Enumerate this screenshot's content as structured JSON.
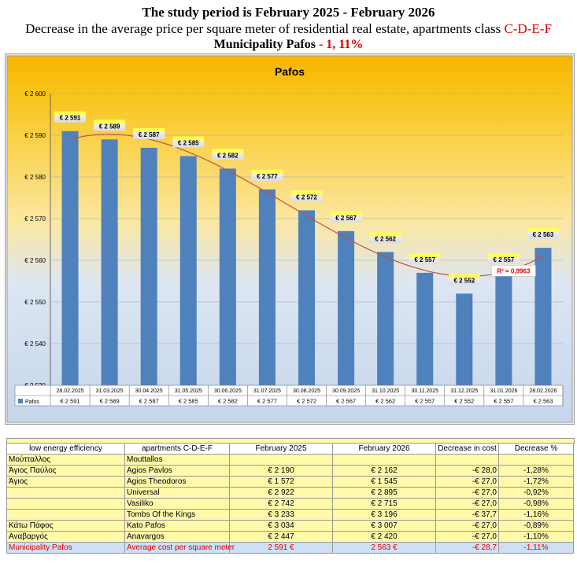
{
  "header": {
    "line1": "The study period is February 2025 - February 2026",
    "line2_text": "Decrease in the average price per square meter of residential real estate, apartments class ",
    "line2_class": "C-D-E-F",
    "line3_text": "Municipality Pafos",
    "line3_value": " - 1, 11%"
  },
  "chart_data": {
    "type": "bar",
    "title": "Pafos",
    "categories": [
      "28.02.2025",
      "31.03.2025",
      "30.04.2025",
      "31.05.2025",
      "30.06.2025",
      "31.07.2025",
      "30.08.2025",
      "30.09.2025",
      "31.10.2025",
      "30.11.2025",
      "31.12.2025",
      "31.01.2026",
      "28.02.2026"
    ],
    "series": [
      {
        "name": "Pafos",
        "values": [
          2591,
          2589,
          2587,
          2585,
          2582,
          2577,
          2572,
          2567,
          2562,
          2557,
          2552,
          2557,
          2563
        ],
        "labels": [
          "€ 2 591",
          "€ 2 589",
          "€ 2 587",
          "€ 2 585",
          "€ 2 582",
          "€ 2 577",
          "€ 2 572",
          "€ 2 567",
          "€ 2 562",
          "€ 2 557",
          "€ 2 552",
          "€ 2 557",
          "€ 2 563"
        ]
      }
    ],
    "ylim": [
      2530,
      2600
    ],
    "yticks": [
      2530,
      2540,
      2550,
      2560,
      2570,
      2580,
      2590,
      2600
    ],
    "ytick_labels": [
      "€ 2 530",
      "€ 2 540",
      "€ 2 550",
      "€ 2 560",
      "€ 2 570",
      "€ 2 580",
      "€ 2 590",
      "€ 2 600"
    ],
    "trendline_label": "R² = 0,9963",
    "data_table": true,
    "grid": true,
    "colors": {
      "bar": "#4f81bd",
      "trend": "#c0504d",
      "label_bg": "#ffff66",
      "r2_text": "#e00000"
    }
  },
  "table": {
    "columns": [
      "low energy efficiency",
      "apartments C-D-E-F",
      "February 2025",
      "February 2026",
      "Decrease in cost",
      "Decrease %"
    ],
    "rows": [
      [
        "Μούτταλλος",
        "Mouttallos",
        "",
        "",
        "",
        ""
      ],
      [
        "Άγιος Παύλος",
        "Agios Pavlos",
        "€ 2 190",
        "€ 2 162",
        "-€ 28,0",
        "-1,28%"
      ],
      [
        "Άγιος",
        "Agios Theodoros",
        "€ 1 572",
        "€ 1 545",
        "-€ 27,0",
        "-1,72%"
      ],
      [
        "",
        "Universal",
        "€ 2 922",
        "€ 2 895",
        "-€ 27,0",
        "-0,92%"
      ],
      [
        "",
        "Vasiliko",
        "€ 2 742",
        "€ 2 715",
        "-€ 27,0",
        "-0,98%"
      ],
      [
        "",
        "Tombs Of the Kings",
        "€ 3 233",
        "€ 3 196",
        "-€ 37,7",
        "-1,16%"
      ],
      [
        "Κάτω Πάφος",
        "Kato Pafos",
        "€ 3 034",
        "€ 3 007",
        "-€ 27,0",
        "-0,89%"
      ],
      [
        "Αναβαργός",
        "Anavargos",
        "€ 2 447",
        "€ 2 420",
        "-€ 27,0",
        "-1,10%"
      ]
    ],
    "total": [
      "Municipality Pafos",
      "Average cost per square meter",
      "2 591 €",
      "2 563 €",
      "-€ 28,7",
      "-1,11%"
    ]
  }
}
